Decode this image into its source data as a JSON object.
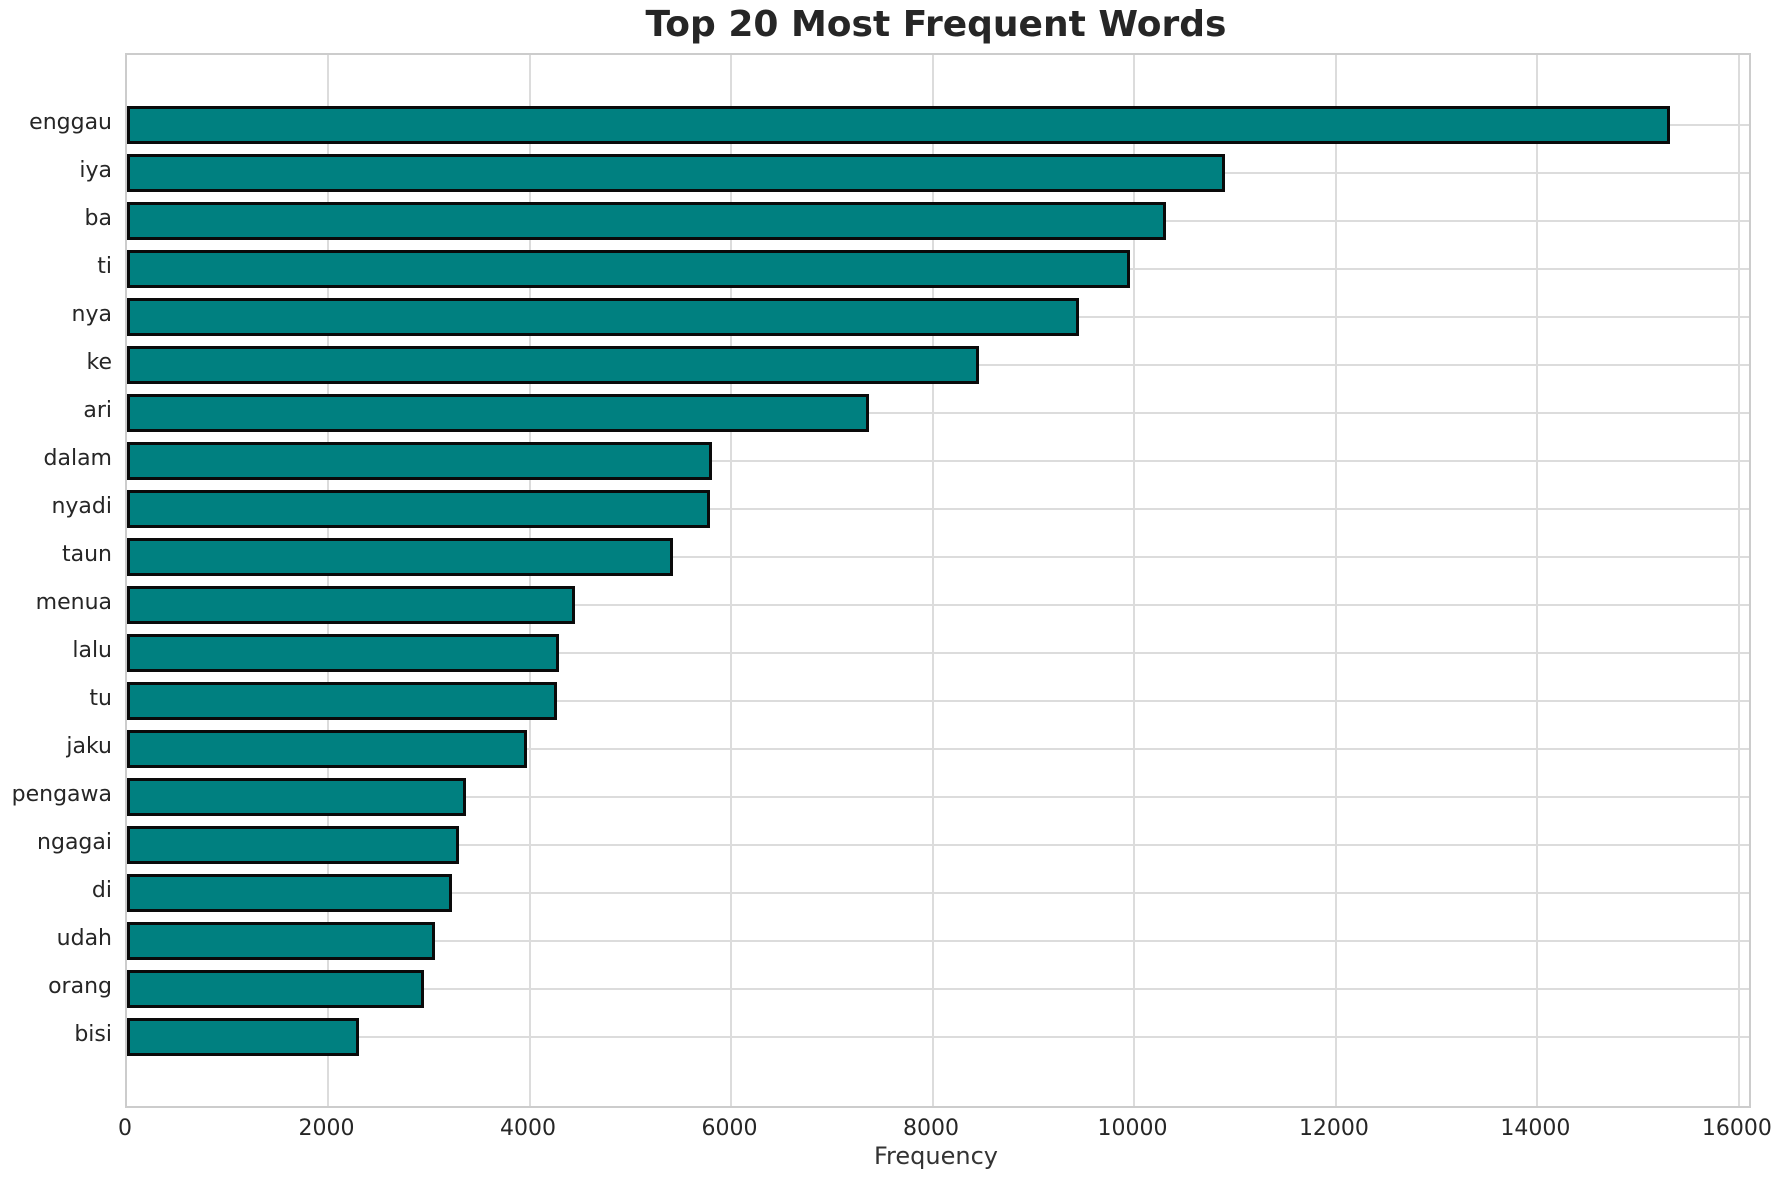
{
  "title": "Top 20 Most Frequent Words",
  "chart_data": {
    "type": "bar",
    "orientation": "horizontal",
    "title": "Top 20 Most Frequent Words",
    "xlabel": "Frequency",
    "ylabel": "",
    "categories": [
      "enggau",
      "iya",
      "ba",
      "ti",
      "nya",
      "ke",
      "ari",
      "dalam",
      "nyadi",
      "taun",
      "menua",
      "lalu",
      "tu",
      "jaku",
      "pengawa",
      "ngagai",
      "di",
      "udah",
      "orang",
      "bisi"
    ],
    "values": [
      15320,
      10900,
      10310,
      9960,
      9450,
      8460,
      7370,
      5810,
      5790,
      5420,
      4450,
      4290,
      4270,
      3970,
      3360,
      3300,
      3230,
      3060,
      2950,
      2300
    ],
    "x_ticks": [
      0,
      2000,
      4000,
      6000,
      8000,
      10000,
      12000,
      14000,
      16000
    ],
    "x_tick_labels": [
      "0",
      "2000",
      "4000",
      "6000",
      "8000",
      "10000",
      "12000",
      "14000",
      "16000"
    ],
    "xlim": [
      0,
      16100
    ],
    "grid": true,
    "legend": null,
    "bar_color": "#008080",
    "bar_edge_color": "#0a0a0a",
    "grid_color": "#dcdcdc",
    "spine_color": "#cccccc",
    "text_color": "#262626"
  }
}
